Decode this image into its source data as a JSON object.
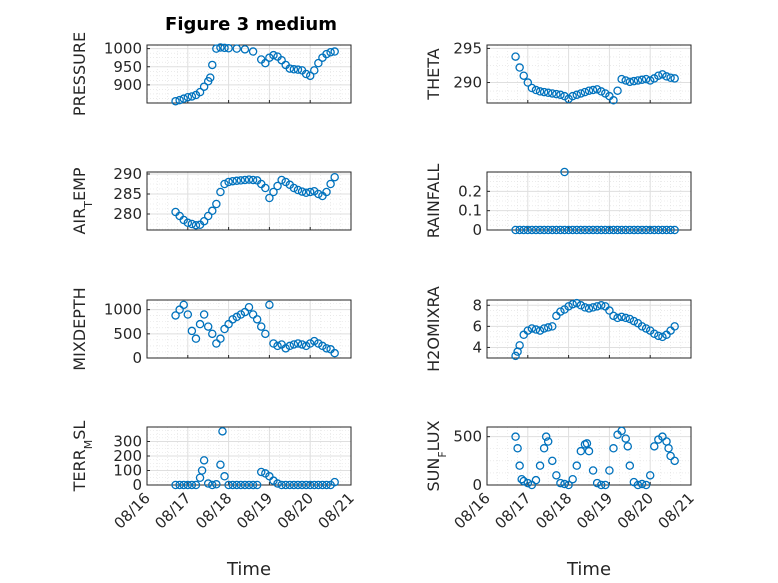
{
  "figure": {
    "title": "Figure 3 medium"
  },
  "colors": {
    "marker": "#0072bd",
    "grid": "#dfdfdf",
    "axis": "#262626"
  },
  "chart_data": [
    {
      "type": "scatter",
      "ylabel": "PRESSURE",
      "ylim": [
        850,
        1010
      ],
      "yticks": [
        900,
        950,
        1000
      ],
      "xlim": [
        0,
        5
      ],
      "grid": true,
      "x": [
        0.7,
        0.8,
        0.9,
        1.0,
        1.1,
        1.2,
        1.3,
        1.4,
        1.5,
        1.55,
        1.6,
        1.7,
        1.8,
        1.9,
        2.0,
        2.2,
        2.4,
        2.6,
        2.8,
        2.9,
        3.0,
        3.1,
        3.2,
        3.3,
        3.4,
        3.5,
        3.6,
        3.7,
        3.8,
        3.9,
        4.0,
        4.1,
        4.2,
        4.3,
        4.4,
        4.5,
        4.6
      ],
      "y": [
        855,
        858,
        862,
        866,
        868,
        872,
        880,
        895,
        910,
        920,
        955,
        1000,
        1003,
        1002,
        1001,
        1000,
        998,
        992,
        970,
        960,
        975,
        982,
        978,
        968,
        955,
        945,
        943,
        942,
        940,
        930,
        925,
        940,
        960,
        975,
        985,
        990,
        992
      ]
    },
    {
      "type": "scatter",
      "ylabel": "THETA",
      "ylim": [
        287,
        295.5
      ],
      "yticks": [
        290,
        295
      ],
      "xlim": [
        0,
        5
      ],
      "grid": true,
      "x": [
        0.7,
        0.8,
        0.9,
        1.0,
        1.1,
        1.2,
        1.3,
        1.4,
        1.5,
        1.6,
        1.7,
        1.8,
        1.9,
        2.0,
        2.1,
        2.2,
        2.3,
        2.4,
        2.5,
        2.6,
        2.7,
        2.8,
        2.9,
        3.0,
        3.1,
        3.2,
        3.3,
        3.4,
        3.5,
        3.6,
        3.7,
        3.8,
        3.9,
        4.0,
        4.1,
        4.2,
        4.3,
        4.4,
        4.5,
        4.6
      ],
      "y": [
        293.8,
        292.2,
        291,
        290,
        289.2,
        288.9,
        288.7,
        288.6,
        288.5,
        288.4,
        288.3,
        288.2,
        288,
        287.6,
        288,
        288.2,
        288.4,
        288.6,
        288.8,
        288.9,
        289,
        288.7,
        288.4,
        288,
        287.4,
        288.8,
        290.5,
        290.3,
        290.1,
        290.2,
        290.3,
        290.4,
        290.5,
        290.3,
        290.6,
        291,
        291.2,
        290.9,
        290.7,
        290.6
      ]
    },
    {
      "type": "scatter",
      "ylabel": "AIR_TEMP",
      "ylim": [
        276,
        290.5
      ],
      "yticks": [
        280,
        285,
        290
      ],
      "xlim": [
        0,
        5
      ],
      "grid": true,
      "x": [
        0.7,
        0.8,
        0.9,
        1.0,
        1.1,
        1.2,
        1.3,
        1.4,
        1.5,
        1.6,
        1.7,
        1.8,
        1.9,
        2.0,
        2.1,
        2.2,
        2.3,
        2.4,
        2.5,
        2.6,
        2.7,
        2.8,
        2.9,
        3.0,
        3.1,
        3.2,
        3.3,
        3.4,
        3.5,
        3.6,
        3.7,
        3.8,
        3.9,
        4.0,
        4.1,
        4.2,
        4.3,
        4.4,
        4.5,
        4.6
      ],
      "y": [
        280.5,
        279.5,
        278.5,
        277.8,
        277.5,
        277.2,
        277.3,
        278.2,
        279.5,
        280.8,
        282.5,
        285.5,
        287.5,
        288,
        288.2,
        288.3,
        288.4,
        288.5,
        288.6,
        288.5,
        288.4,
        287.5,
        286.5,
        284,
        285.5,
        287,
        288.5,
        288,
        287.3,
        286.5,
        286,
        285.6,
        285.3,
        285.5,
        285.7,
        285,
        284.5,
        285.5,
        287.5,
        289.2
      ]
    },
    {
      "type": "scatter",
      "ylabel": "RAINFALL",
      "ylim": [
        0,
        0.3
      ],
      "yticks": [
        0,
        0.1,
        0.2
      ],
      "xlim": [
        0,
        5
      ],
      "grid": true,
      "x": [
        0.7,
        0.8,
        0.9,
        1.0,
        1.1,
        1.2,
        1.3,
        1.4,
        1.5,
        1.6,
        1.7,
        1.8,
        1.9,
        2.0,
        2.1,
        2.2,
        2.3,
        2.4,
        2.5,
        2.6,
        2.7,
        2.8,
        2.9,
        3.0,
        3.1,
        3.2,
        3.3,
        3.4,
        3.5,
        3.6,
        3.7,
        3.8,
        3.9,
        4.0,
        4.1,
        4.2,
        4.3,
        4.4,
        4.5,
        4.6,
        1.9
      ],
      "y": [
        0,
        0,
        0,
        0,
        0,
        0,
        0,
        0,
        0,
        0,
        0,
        0,
        0,
        0,
        0,
        0,
        0,
        0,
        0,
        0,
        0,
        0,
        0,
        0,
        0,
        0,
        0,
        0,
        0,
        0,
        0,
        0,
        0,
        0,
        0,
        0,
        0,
        0,
        0,
        0,
        0.3
      ]
    },
    {
      "type": "scatter",
      "ylabel": "MIXDEPTH",
      "ylim": [
        0,
        1200
      ],
      "yticks": [
        0,
        500,
        1000
      ],
      "xlim": [
        0,
        5
      ],
      "grid": true,
      "x": [
        0.7,
        0.8,
        0.9,
        1.0,
        1.1,
        1.2,
        1.3,
        1.4,
        1.5,
        1.6,
        1.7,
        1.8,
        1.9,
        2.0,
        2.1,
        2.2,
        2.3,
        2.4,
        2.5,
        2.6,
        2.7,
        2.8,
        2.9,
        3.0,
        3.1,
        3.2,
        3.3,
        3.4,
        3.5,
        3.6,
        3.7,
        3.8,
        3.9,
        4.0,
        4.1,
        4.2,
        4.3,
        4.4,
        4.5,
        4.6
      ],
      "y": [
        880,
        1000,
        1100,
        900,
        560,
        400,
        700,
        900,
        650,
        500,
        300,
        400,
        600,
        700,
        800,
        850,
        900,
        950,
        1050,
        900,
        800,
        650,
        500,
        1100,
        300,
        250,
        280,
        200,
        250,
        280,
        300,
        280,
        250,
        300,
        350,
        300,
        250,
        200,
        180,
        100
      ]
    },
    {
      "type": "scatter",
      "ylabel": "H2OMIXRA",
      "ylim": [
        3,
        8.5
      ],
      "yticks": [
        4,
        6,
        8
      ],
      "xlim": [
        0,
        5
      ],
      "grid": true,
      "x": [
        0.7,
        0.75,
        0.8,
        0.9,
        1.0,
        1.1,
        1.2,
        1.3,
        1.4,
        1.5,
        1.6,
        1.7,
        1.8,
        1.9,
        2.0,
        2.1,
        2.2,
        2.3,
        2.4,
        2.5,
        2.6,
        2.7,
        2.8,
        2.9,
        3.0,
        3.1,
        3.2,
        3.3,
        3.4,
        3.5,
        3.6,
        3.7,
        3.8,
        3.9,
        4.0,
        4.1,
        4.2,
        4.3,
        4.4,
        4.5,
        4.6
      ],
      "y": [
        3.2,
        3.6,
        4.2,
        5.2,
        5.6,
        5.8,
        5.7,
        5.6,
        5.8,
        5.9,
        6.0,
        7.0,
        7.4,
        7.6,
        7.9,
        8.1,
        8.2,
        8.0,
        7.8,
        7.7,
        7.8,
        7.9,
        8.0,
        7.9,
        7.5,
        7.0,
        6.8,
        6.9,
        6.8,
        6.7,
        6.5,
        6.3,
        6.0,
        5.8,
        5.6,
        5.3,
        5.1,
        5.0,
        5.2,
        5.6,
        6.0
      ]
    },
    {
      "type": "scatter",
      "ylabel": "TERR_MSL",
      "ylim": [
        0,
        400
      ],
      "yticks": [
        0,
        100,
        200,
        300
      ],
      "xlim": [
        0,
        5
      ],
      "grid": true,
      "x": [
        0.7,
        0.8,
        0.9,
        1.0,
        1.1,
        1.2,
        1.3,
        1.35,
        1.4,
        1.5,
        1.6,
        1.7,
        1.8,
        1.85,
        1.9,
        2.0,
        2.1,
        2.2,
        2.3,
        2.4,
        2.5,
        2.6,
        2.7,
        2.8,
        2.9,
        3.0,
        3.1,
        3.2,
        3.3,
        3.4,
        3.5,
        3.6,
        3.7,
        3.8,
        3.9,
        4.0,
        4.1,
        4.2,
        4.3,
        4.4,
        4.5,
        4.6
      ],
      "y": [
        0,
        0,
        0,
        0,
        0,
        0,
        50,
        100,
        170,
        10,
        0,
        5,
        140,
        370,
        60,
        0,
        0,
        0,
        0,
        0,
        0,
        0,
        0,
        90,
        80,
        60,
        30,
        10,
        0,
        0,
        0,
        0,
        0,
        0,
        0,
        0,
        0,
        0,
        0,
        0,
        0,
        20
      ]
    },
    {
      "type": "scatter",
      "ylabel": "SUN_FLUX",
      "ylim": [
        0,
        600
      ],
      "yticks": [
        0,
        500
      ],
      "xlim": [
        0,
        5
      ],
      "grid": true,
      "x": [
        0.7,
        0.75,
        0.8,
        0.85,
        0.9,
        1.0,
        1.1,
        1.2,
        1.3,
        1.4,
        1.45,
        1.5,
        1.6,
        1.7,
        1.8,
        1.9,
        2.0,
        2.1,
        2.2,
        2.3,
        2.4,
        2.45,
        2.5,
        2.6,
        2.7,
        2.8,
        2.9,
        3.0,
        3.1,
        3.2,
        3.3,
        3.4,
        3.45,
        3.5,
        3.6,
        3.7,
        3.8,
        3.9,
        4.0,
        4.1,
        4.2,
        4.3,
        4.4,
        4.45,
        4.5,
        4.6
      ],
      "y": [
        500,
        380,
        200,
        60,
        40,
        20,
        0,
        50,
        200,
        380,
        500,
        450,
        250,
        100,
        20,
        10,
        0,
        60,
        200,
        350,
        420,
        430,
        350,
        150,
        20,
        0,
        0,
        150,
        380,
        520,
        560,
        480,
        400,
        200,
        30,
        0,
        10,
        0,
        100,
        400,
        470,
        500,
        450,
        380,
        300,
        250
      ]
    }
  ],
  "xaxis": {
    "ticklabels": [
      "08/16",
      "08/17",
      "08/18",
      "08/19",
      "08/20",
      "08/21"
    ],
    "label": "Time"
  }
}
